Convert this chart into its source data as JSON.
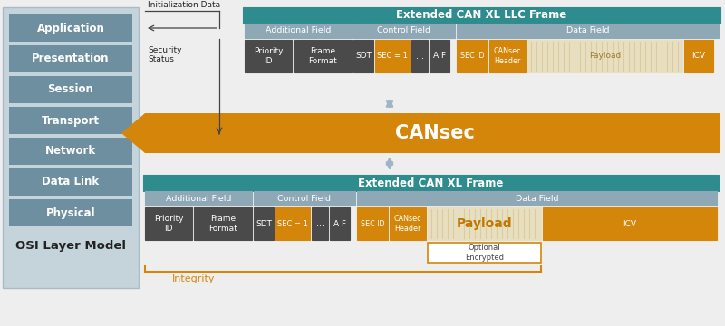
{
  "bg_color": "#eeeeee",
  "teal": "#2e8b8e",
  "orange": "#d4860a",
  "dark_gray": "#4a4a4a",
  "osi_bg": "#c5d3db",
  "osi_layer_bg": "#6e8fa0",
  "white": "#ffffff",
  "payload_bg": "#e8dfc0",
  "payload_stripe": "#d8c898",
  "osi_layers": [
    "Application",
    "Presentation",
    "Session",
    "Transport",
    "Network",
    "Data Link",
    "Physical"
  ],
  "osi_label": "OSI Layer Model",
  "llc_title": "Extended CAN XL LLC Frame",
  "can_title": "Extended CAN XL Frame",
  "cansec_label": "CANsec",
  "integrity_label": "Integrity",
  "init_data_label": "Initialization Data",
  "security_status_label": "Security\nStatus",
  "optional_encrypted_label": "Optional\nEncrypted",
  "arrow_color": "#a0b4c8",
  "line_color": "#444444",
  "group_header_color": "#8fa8b5",
  "icv_color": "#c07800"
}
